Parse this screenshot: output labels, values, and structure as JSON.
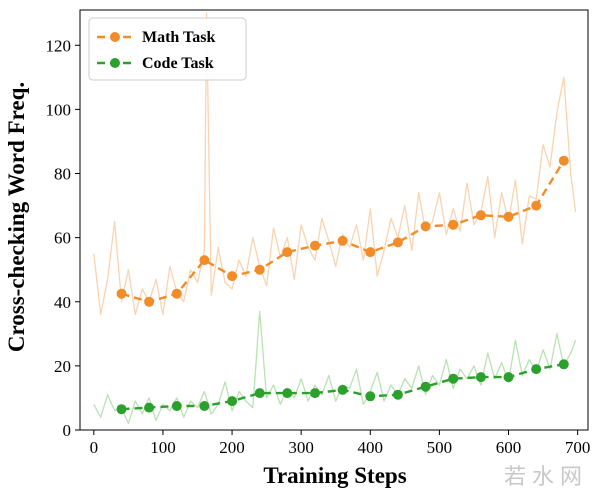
{
  "watermark": "若水网",
  "chart_data": {
    "type": "line",
    "title": "",
    "xlabel": "Training Steps",
    "ylabel": "Cross-checking Word Freq.",
    "xlim": [
      -20,
      715
    ],
    "ylim": [
      0,
      131
    ],
    "xticks": [
      0,
      100,
      200,
      300,
      400,
      500,
      600,
      700
    ],
    "yticks": [
      0,
      20,
      40,
      60,
      80,
      100,
      120
    ],
    "legend_position": "top-left",
    "series": [
      {
        "name": "Math Task",
        "color": "#f28c28",
        "raw_color": "#fbd3b0",
        "x": [
          40,
          80,
          120,
          160,
          200,
          240,
          280,
          320,
          360,
          400,
          440,
          480,
          520,
          560,
          600,
          640,
          680
        ],
        "values": [
          42.5,
          40,
          42.5,
          53,
          48,
          50,
          55.5,
          57.5,
          59,
          55.5,
          58.5,
          63.5,
          64,
          67,
          66.5,
          70,
          84
        ],
        "raw_x": [
          0,
          10,
          20,
          30,
          40,
          50,
          60,
          70,
          80,
          90,
          100,
          110,
          120,
          130,
          140,
          150,
          160,
          163,
          170,
          180,
          190,
          200,
          210,
          220,
          230,
          240,
          250,
          260,
          270,
          280,
          290,
          300,
          310,
          320,
          330,
          340,
          350,
          360,
          370,
          380,
          390,
          400,
          410,
          420,
          430,
          440,
          450,
          460,
          470,
          480,
          490,
          500,
          510,
          520,
          530,
          540,
          550,
          560,
          570,
          580,
          590,
          600,
          610,
          620,
          630,
          640,
          650,
          660,
          670,
          680,
          690,
          697
        ],
        "raw_y": [
          55,
          36,
          47,
          65,
          40,
          50,
          36,
          44,
          40,
          47,
          36,
          51,
          43,
          40,
          50,
          46,
          56,
          130,
          42,
          57,
          46,
          44,
          53,
          48,
          60,
          51,
          45,
          63,
          54,
          60,
          47,
          64,
          57,
          53,
          66,
          59,
          51,
          61,
          57,
          64,
          53,
          69,
          48,
          56,
          66,
          60,
          70,
          56,
          74,
          62,
          65,
          74,
          61,
          69,
          62,
          77,
          64,
          68,
          79,
          60,
          74,
          65,
          78,
          58,
          73,
          72,
          89,
          82,
          99,
          110,
          80,
          68
        ]
      },
      {
        "name": "Code Task",
        "color": "#2ca02c",
        "raw_color": "#b7e3b2",
        "x": [
          40,
          80,
          120,
          160,
          200,
          240,
          280,
          320,
          360,
          400,
          440,
          480,
          520,
          560,
          600,
          640,
          680
        ],
        "values": [
          6.5,
          7,
          7.5,
          7.5,
          9,
          11.5,
          11.5,
          11.5,
          12.5,
          10.5,
          11,
          13.5,
          16,
          16.5,
          16.5,
          19,
          20.5
        ],
        "raw_x": [
          0,
          10,
          20,
          30,
          40,
          50,
          60,
          70,
          80,
          90,
          100,
          110,
          120,
          130,
          140,
          150,
          160,
          170,
          180,
          190,
          200,
          210,
          220,
          230,
          240,
          250,
          260,
          270,
          280,
          290,
          300,
          310,
          320,
          330,
          340,
          350,
          360,
          370,
          380,
          390,
          400,
          410,
          420,
          430,
          440,
          450,
          460,
          470,
          480,
          490,
          500,
          510,
          520,
          530,
          540,
          550,
          560,
          570,
          580,
          590,
          600,
          610,
          620,
          630,
          640,
          650,
          660,
          670,
          680,
          690,
          697
        ],
        "raw_y": [
          8,
          4,
          11,
          6,
          7,
          2,
          9,
          5,
          10,
          3,
          8,
          6,
          10,
          4,
          9,
          7,
          12,
          5,
          8,
          15,
          6,
          12,
          9,
          7,
          37,
          10,
          14,
          8,
          13,
          10,
          16,
          9,
          14,
          11,
          17,
          9,
          14,
          13,
          19,
          8,
          12,
          18,
          9,
          14,
          11,
          16,
          13,
          20,
          11,
          17,
          14,
          22,
          13,
          19,
          16,
          20,
          14,
          24,
          16,
          21,
          15,
          28,
          17,
          22,
          18,
          25,
          19,
          30,
          20,
          24,
          28
        ]
      }
    ]
  }
}
